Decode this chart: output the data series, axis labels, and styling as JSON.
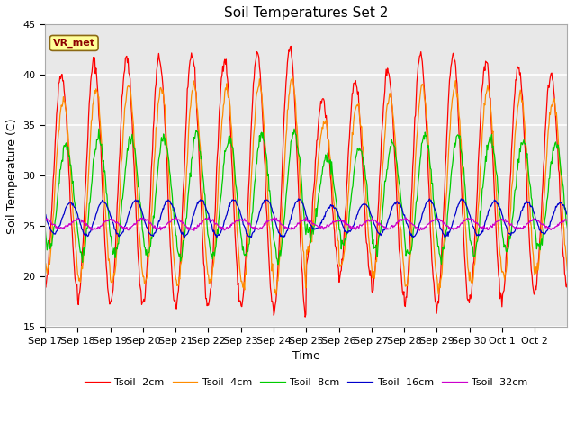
{
  "title": "Soil Temperatures Set 2",
  "xlabel": "Time",
  "ylabel": "Soil Temperature (C)",
  "ylim": [
    15,
    45
  ],
  "annotation_text": "VR_met",
  "annotation_color": "#8B0000",
  "annotation_bg": "#FFFF99",
  "plot_bg_color": "#E8E8E8",
  "fig_bg_color": "#FFFFFF",
  "grid_color": "#FFFFFF",
  "series": [
    {
      "label": "Tsoil -2cm",
      "color": "#FF0000",
      "amplitude": 12.5,
      "mean": 29.5,
      "lag": 0.0
    },
    {
      "label": "Tsoil -4cm",
      "color": "#FF8C00",
      "amplitude": 10.0,
      "mean": 29.0,
      "lag": 0.06
    },
    {
      "label": "Tsoil -8cm",
      "color": "#00CC00",
      "amplitude": 6.0,
      "mean": 28.0,
      "lag": 0.14
    },
    {
      "label": "Tsoil -16cm",
      "color": "#0000CC",
      "amplitude": 1.8,
      "mean": 25.8,
      "lag": 0.28
    },
    {
      "label": "Tsoil -32cm",
      "color": "#CC00CC",
      "amplitude": 0.5,
      "mean": 25.2,
      "lag": 0.5
    }
  ],
  "x_tick_labels": [
    "Sep 17",
    "Sep 18",
    "Sep 19",
    "Sep 20",
    "Sep 21",
    "Sep 22",
    "Sep 23",
    "Sep 24",
    "Sep 25",
    "Sep 26",
    "Sep 27",
    "Sep 28",
    "Sep 29",
    "Sep 30",
    "Oct 1",
    "Oct 2"
  ],
  "day_amp_modulation": [
    0.85,
    0.95,
    0.97,
    0.97,
    1.0,
    0.97,
    1.0,
    1.05,
    0.65,
    0.8,
    0.88,
    1.0,
    1.0,
    0.95,
    0.9,
    0.85
  ],
  "n_days": 16,
  "points_per_day": 48,
  "figsize": [
    6.4,
    4.8
  ],
  "dpi": 100
}
